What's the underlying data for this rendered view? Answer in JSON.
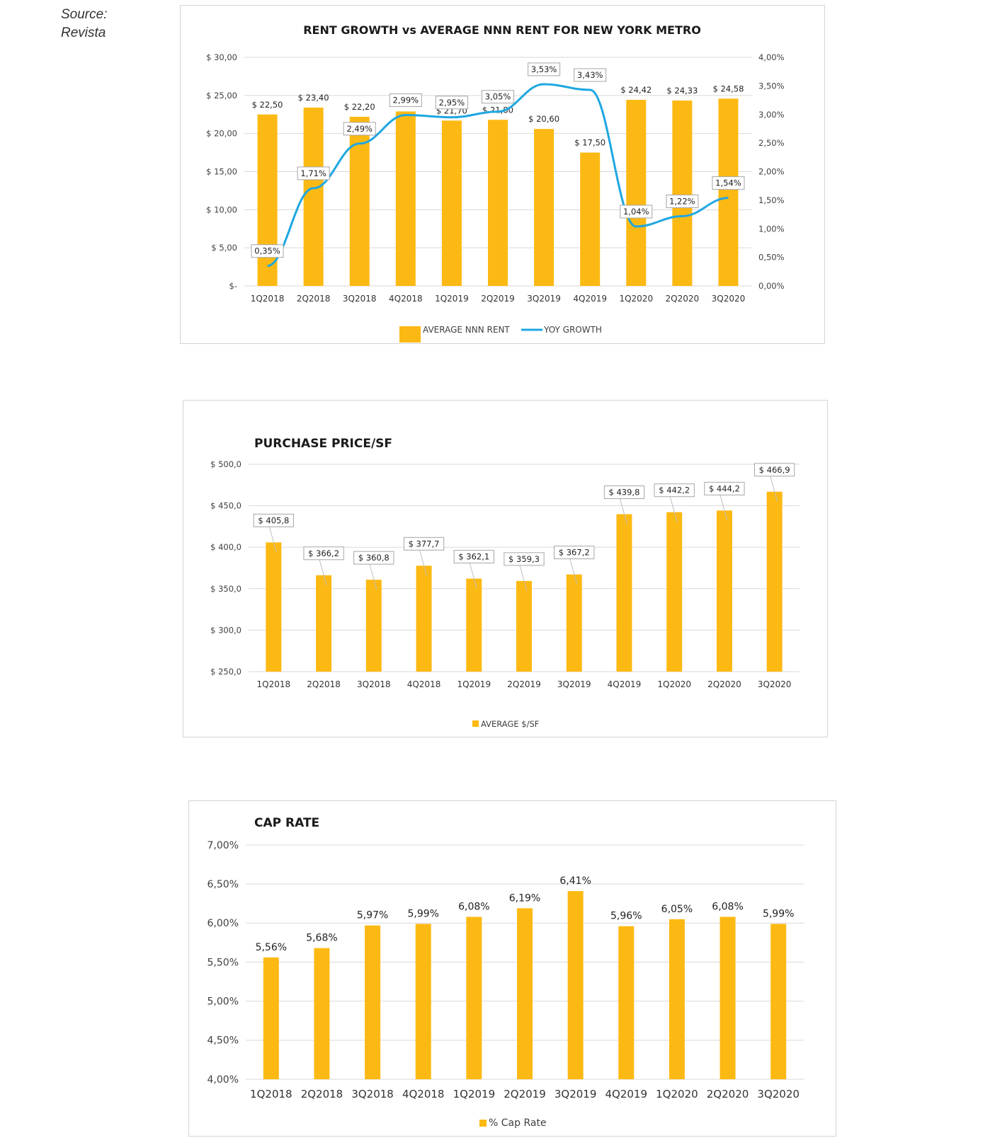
{
  "source": {
    "line1": "Source:",
    "line2": "Revista"
  },
  "colors": {
    "bar": "#FDB913",
    "line": "#1EA7E1",
    "grid": "#D9D9D9",
    "axis_text": "#404040"
  },
  "chart_data": [
    {
      "type": "bar",
      "title": "RENT GROWTH vs AVERAGE NNN RENT FOR NEW YORK METRO",
      "categories": [
        "1Q2018",
        "2Q2018",
        "3Q2018",
        "4Q2018",
        "1Q2019",
        "2Q2019",
        "3Q2019",
        "4Q2019",
        "1Q2020",
        "2Q2020",
        "3Q2020"
      ],
      "series": [
        {
          "name": "AVERAGE NNN RENT",
          "type": "bar",
          "axis": "left",
          "values": [
            22.5,
            23.4,
            22.2,
            22.9,
            21.7,
            21.8,
            20.6,
            17.5,
            24.42,
            24.33,
            24.58
          ],
          "labels": [
            "$ 22,50",
            "$ 23,40",
            "$ 22,20",
            "",
            "$ 21,70",
            "$ 21,80",
            "$ 20,60",
            "$ 17,50",
            "$ 24,42",
            "$ 24,33",
            "$ 24,58"
          ]
        },
        {
          "name": "YOY GROWTH",
          "type": "line",
          "axis": "right",
          "values": [
            0.35,
            1.71,
            2.49,
            2.99,
            2.95,
            3.05,
            3.53,
            3.43,
            1.04,
            1.22,
            1.54
          ],
          "labels": [
            "0,35%",
            "1,71%",
            "2,49%",
            "2,99%",
            "2,95%",
            "3,05%",
            "3,53%",
            "3,43%",
            "1,04%",
            "1,22%",
            "1,54%"
          ]
        }
      ],
      "ylim": [
        0,
        30
      ],
      "y2lim": [
        0,
        4
      ],
      "yticks": [
        "$-",
        "$ 5,00",
        "$ 10,00",
        "$ 15,00",
        "$ 20,00",
        "$ 25,00",
        "$ 30,00"
      ],
      "y2ticks": [
        "0,00%",
        "0,50%",
        "1,00%",
        "1,50%",
        "2,00%",
        "2,50%",
        "3,00%",
        "3,50%",
        "4,00%"
      ],
      "grid": true,
      "legend": "bottom"
    },
    {
      "type": "bar",
      "title": "PURCHASE PRICE/SF",
      "categories": [
        "1Q2018",
        "2Q2018",
        "3Q2018",
        "4Q2018",
        "1Q2019",
        "2Q2019",
        "3Q2019",
        "4Q2019",
        "1Q2020",
        "2Q2020",
        "3Q2020"
      ],
      "series": [
        {
          "name": "AVERAGE $/SF",
          "values": [
            405.8,
            366.2,
            360.8,
            377.7,
            362.1,
            359.3,
            367.2,
            439.8,
            442.2,
            444.2,
            466.9
          ],
          "labels": [
            "$ 405,8",
            "$ 366,2",
            "$ 360,8",
            "$ 377,7",
            "$ 362,1",
            "$ 359,3",
            "$ 367,2",
            "$ 439,8",
            "$ 442,2",
            "$ 444,2",
            "$ 466,9"
          ]
        }
      ],
      "ylim": [
        250,
        500
      ],
      "yticks": [
        "$ 250,0",
        "$ 300,0",
        "$ 350,0",
        "$ 400,0",
        "$ 450,0",
        "$ 500,0"
      ],
      "grid": true,
      "legend": "bottom"
    },
    {
      "type": "bar",
      "title": "CAP RATE",
      "categories": [
        "1Q2018",
        "2Q2018",
        "3Q2018",
        "4Q2018",
        "1Q2019",
        "2Q2019",
        "3Q2019",
        "4Q2019",
        "1Q2020",
        "2Q2020",
        "3Q2020"
      ],
      "series": [
        {
          "name": "% Cap Rate",
          "values": [
            5.56,
            5.68,
            5.97,
            5.99,
            6.08,
            6.19,
            6.41,
            5.96,
            6.05,
            6.08,
            5.99
          ],
          "labels": [
            "5,56%",
            "5,68%",
            "5,97%",
            "5,99%",
            "6,08%",
            "6,19%",
            "6,41%",
            "5,96%",
            "6,05%",
            "6,08%",
            "5,99%"
          ]
        }
      ],
      "ylim": [
        4.0,
        7.0
      ],
      "yticks": [
        "4,00%",
        "4,50%",
        "5,00%",
        "5,50%",
        "6,00%",
        "6,50%",
        "7,00%"
      ],
      "grid": true,
      "legend": "bottom"
    }
  ]
}
